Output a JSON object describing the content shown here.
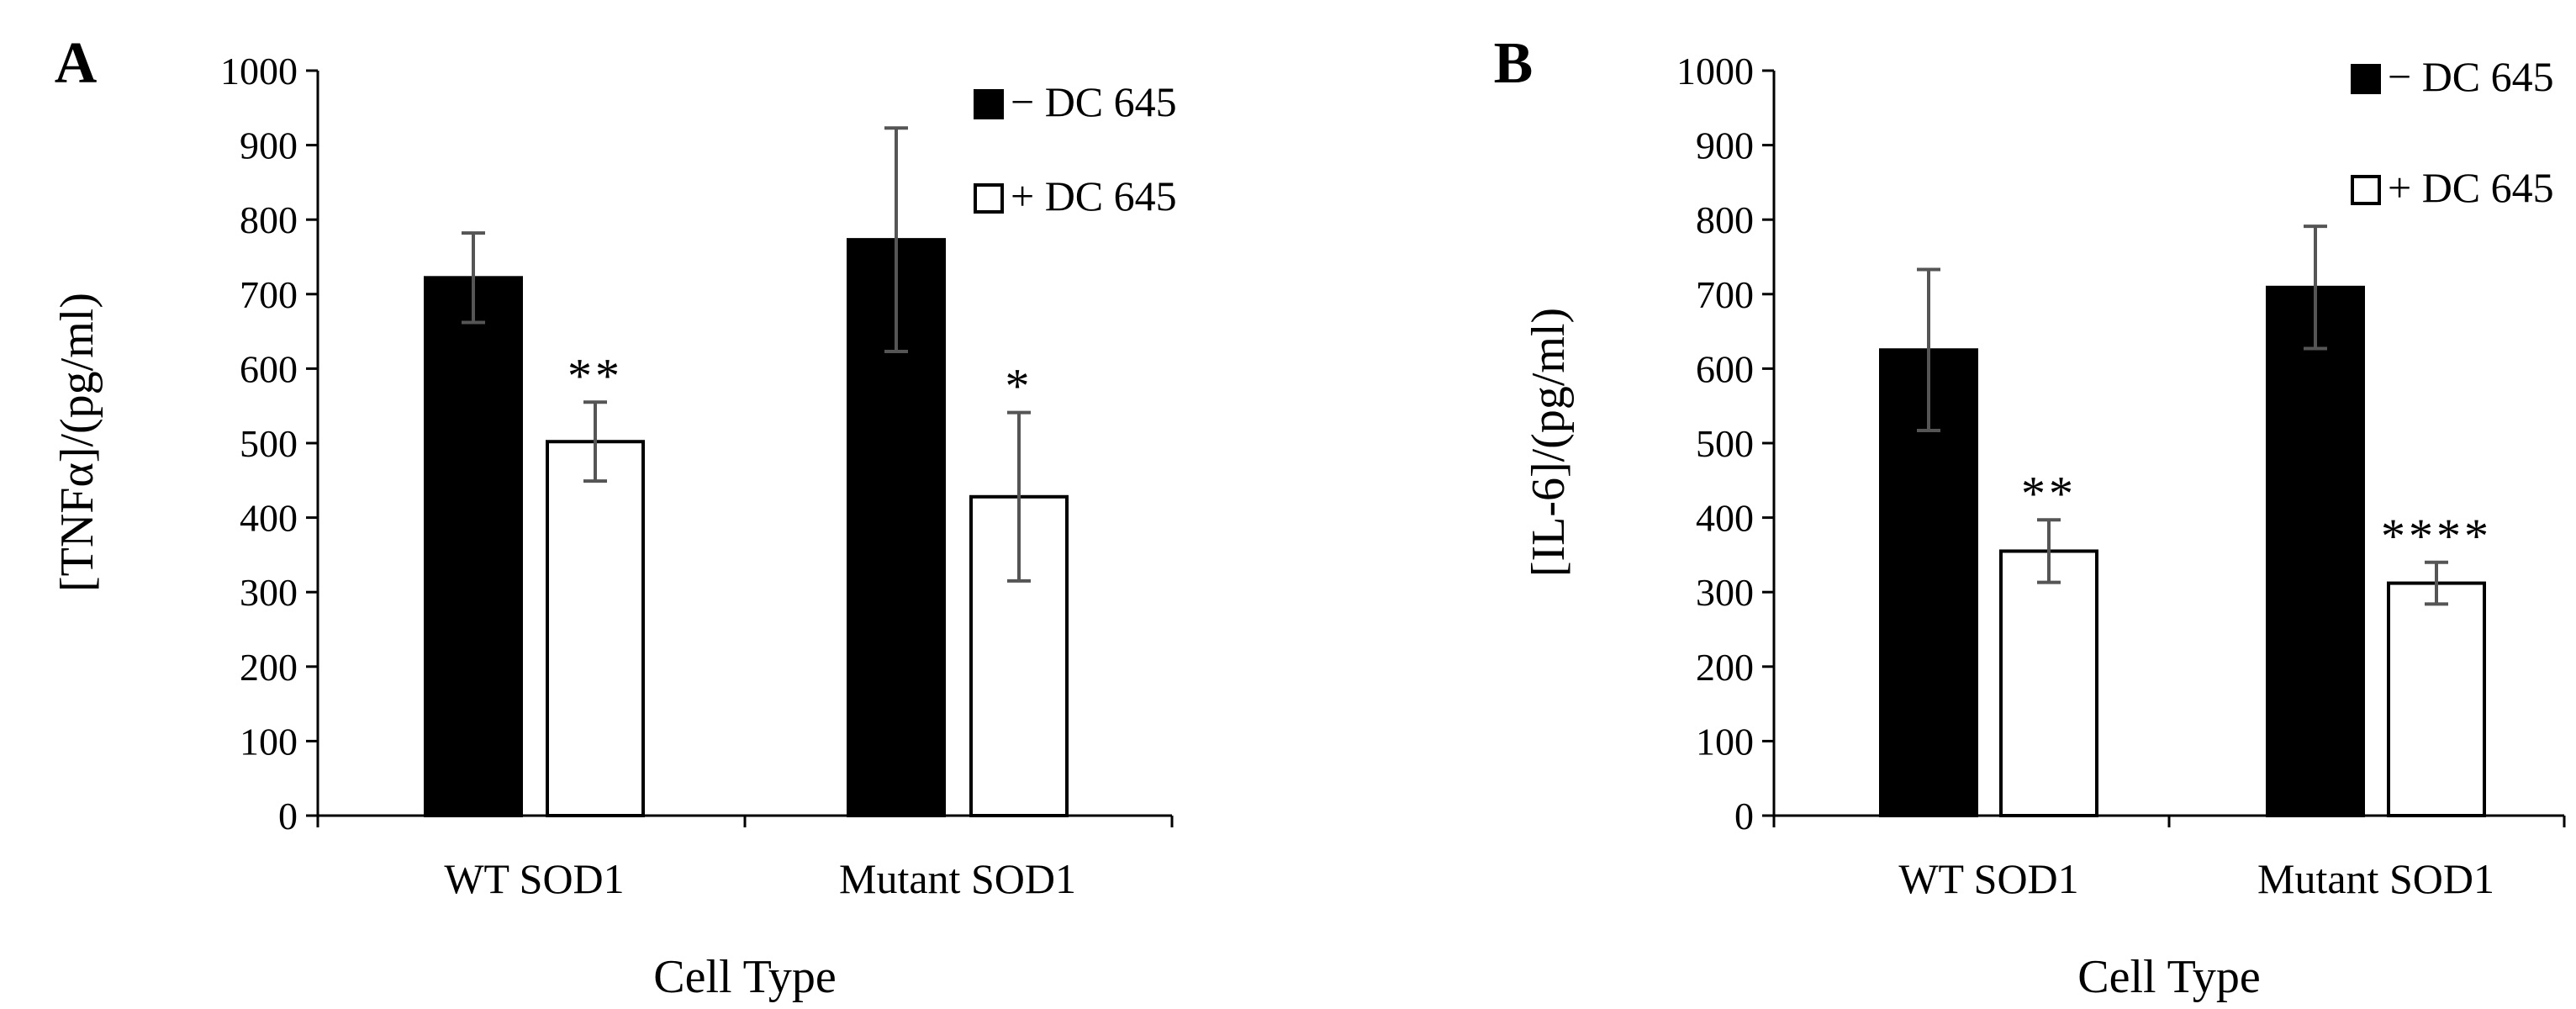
{
  "chart_data": [
    {
      "panel": "A",
      "type": "bar",
      "title": "",
      "xlabel": "Cell Type",
      "ylabel": "[TNFα]/(pg/ml)",
      "ylim": [
        0,
        1000
      ],
      "yticks": [
        0,
        100,
        200,
        300,
        400,
        500,
        600,
        700,
        800,
        900,
        1000
      ],
      "categories": [
        "WT SOD1",
        "Mutant SOD1"
      ],
      "series": [
        {
          "name": "− DC 645",
          "fill": "#000000",
          "values": [
            722,
            773
          ],
          "errors": [
            60,
            150
          ],
          "significance": [
            "",
            ""
          ]
        },
        {
          "name": "+ DC 645",
          "fill": "#ffffff",
          "values": [
            502,
            428
          ],
          "errors": [
            53,
            113
          ],
          "significance": [
            "**",
            "*"
          ]
        }
      ],
      "legend": "top-right"
    },
    {
      "panel": "B",
      "type": "bar",
      "title": "",
      "xlabel": "Cell Type",
      "ylabel": "[IL-6]/(pg/ml)",
      "ylim": [
        0,
        1000
      ],
      "yticks": [
        0,
        100,
        200,
        300,
        400,
        500,
        600,
        700,
        800,
        900,
        1000
      ],
      "categories": [
        "WT SOD1",
        "Mutant SOD1"
      ],
      "series": [
        {
          "name": "− DC 645",
          "fill": "#000000",
          "values": [
            625,
            709
          ],
          "errors": [
            108,
            82
          ],
          "significance": [
            "",
            ""
          ]
        },
        {
          "name": "+ DC 645",
          "fill": "#ffffff",
          "values": [
            355,
            312
          ],
          "errors": [
            42,
            28
          ],
          "significance": [
            "**",
            "****"
          ]
        }
      ],
      "legend": "top-right"
    }
  ]
}
